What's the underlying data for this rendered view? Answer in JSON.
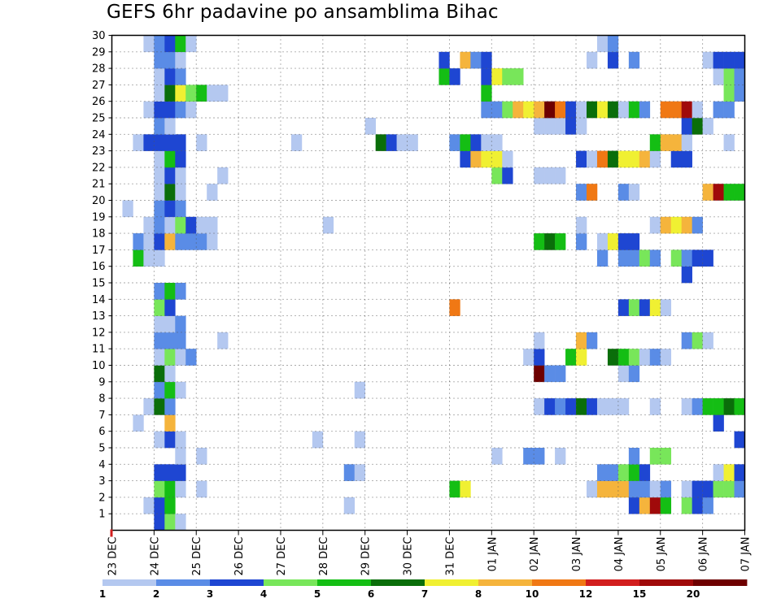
{
  "chart_data": {
    "type": "heatmap",
    "title": "GEFS 6hr padavine po ansamblima Bihac",
    "xlabel": "",
    "ylabel": "",
    "x_tick_labels": [
      "23 DEC",
      "24 DEC",
      "25 DEC",
      "26 DEC",
      "27 DEC",
      "28 DEC",
      "29 DEC",
      "30 DEC",
      "31 DEC",
      "01 JAN",
      "02 JAN",
      "03 JAN",
      "04 JAN",
      "05 JAN",
      "06 JAN",
      "07 JAN"
    ],
    "y_tick_labels": [
      "1",
      "2",
      "3",
      "4",
      "5",
      "6",
      "7",
      "8",
      "9",
      "10",
      "11",
      "12",
      "13",
      "14",
      "15",
      "16",
      "17",
      "18",
      "19",
      "20",
      "21",
      "22",
      "23",
      "24",
      "25",
      "26",
      "27",
      "28",
      "29",
      "30"
    ],
    "n_times": 60,
    "n_members": 30,
    "legend": {
      "labels": [
        "1",
        "2",
        "3",
        "4",
        "5",
        "6",
        "7",
        "8",
        "10",
        "12",
        "15",
        "20"
      ],
      "colors": [
        "#b4c8f0",
        "#5a8ce6",
        "#1e46d2",
        "#78e65a",
        "#14be14",
        "#0a6e0a",
        "#f0f032",
        "#f5b43c",
        "#f07814",
        "#d21e1e",
        "#a00a0a",
        "#6e0000"
      ]
    },
    "color_levels": {
      "1": "#b4c8f0",
      "2": "#5a8ce6",
      "3": "#1e46d2",
      "4": "#78e65a",
      "5": "#14be14",
      "6": "#0a6e0a",
      "7": "#f0f032",
      "8": "#f5b43c",
      "9": "#f07814",
      "10": "#d21e1e",
      "11": "#a00a0a",
      "12": "#6e0000"
    },
    "member_cells": {
      "30": [
        [
          3,
          1
        ],
        [
          4,
          2
        ],
        [
          5,
          3
        ],
        [
          6,
          5
        ],
        [
          7,
          1
        ],
        [
          46,
          1
        ],
        [
          47,
          2
        ]
      ],
      "29": [
        [
          4,
          2
        ],
        [
          5,
          2
        ],
        [
          6,
          1
        ],
        [
          31,
          3
        ],
        [
          33,
          8
        ],
        [
          34,
          2
        ],
        [
          35,
          3
        ],
        [
          45,
          1
        ],
        [
          47,
          3
        ],
        [
          49,
          2
        ],
        [
          56,
          1
        ],
        [
          57,
          3
        ],
        [
          58,
          3
        ],
        [
          59,
          3
        ]
      ],
      "28": [
        [
          4,
          1
        ],
        [
          5,
          3
        ],
        [
          6,
          2
        ],
        [
          31,
          5
        ],
        [
          32,
          3
        ],
        [
          35,
          3
        ],
        [
          36,
          7
        ],
        [
          37,
          4
        ],
        [
          38,
          4
        ],
        [
          57,
          1
        ],
        [
          58,
          4
        ],
        [
          59,
          2
        ]
      ],
      "27": [
        [
          4,
          1
        ],
        [
          5,
          6
        ],
        [
          6,
          7
        ],
        [
          7,
          4
        ],
        [
          8,
          5
        ],
        [
          9,
          1
        ],
        [
          10,
          1
        ],
        [
          35,
          5
        ],
        [
          58,
          4
        ],
        [
          59,
          2
        ]
      ],
      "26": [
        [
          3,
          1
        ],
        [
          4,
          3
        ],
        [
          5,
          3
        ],
        [
          6,
          2
        ],
        [
          7,
          1
        ],
        [
          35,
          2
        ],
        [
          36,
          2
        ],
        [
          37,
          4
        ],
        [
          38,
          8
        ],
        [
          39,
          7
        ],
        [
          40,
          8
        ],
        [
          41,
          12
        ],
        [
          42,
          9
        ],
        [
          43,
          3
        ],
        [
          44,
          1
        ],
        [
          45,
          6
        ],
        [
          46,
          7
        ],
        [
          47,
          6
        ],
        [
          48,
          1
        ],
        [
          49,
          5
        ],
        [
          50,
          2
        ],
        [
          52,
          9
        ],
        [
          53,
          9
        ],
        [
          54,
          11
        ],
        [
          55,
          1
        ],
        [
          57,
          2
        ],
        [
          58,
          2
        ]
      ],
      "25": [
        [
          4,
          2
        ],
        [
          5,
          1
        ],
        [
          24,
          1
        ],
        [
          40,
          1
        ],
        [
          41,
          1
        ],
        [
          42,
          1
        ],
        [
          43,
          3
        ],
        [
          44,
          1
        ],
        [
          54,
          3
        ],
        [
          55,
          6
        ],
        [
          56,
          1
        ]
      ],
      "24": [
        [
          2,
          1
        ],
        [
          3,
          3
        ],
        [
          4,
          3
        ],
        [
          5,
          3
        ],
        [
          6,
          3
        ],
        [
          8,
          1
        ],
        [
          17,
          1
        ],
        [
          25,
          6
        ],
        [
          26,
          3
        ],
        [
          27,
          1
        ],
        [
          28,
          1
        ],
        [
          32,
          2
        ],
        [
          33,
          5
        ],
        [
          34,
          3
        ],
        [
          35,
          1
        ],
        [
          36,
          1
        ],
        [
          51,
          5
        ],
        [
          52,
          8
        ],
        [
          53,
          8
        ],
        [
          54,
          1
        ],
        [
          58,
          1
        ]
      ],
      "23": [
        [
          4,
          1
        ],
        [
          5,
          5
        ],
        [
          6,
          3
        ],
        [
          33,
          3
        ],
        [
          34,
          8
        ],
        [
          35,
          7
        ],
        [
          36,
          7
        ],
        [
          37,
          1
        ],
        [
          44,
          3
        ],
        [
          45,
          1
        ],
        [
          46,
          9
        ],
        [
          47,
          6
        ],
        [
          48,
          7
        ],
        [
          49,
          7
        ],
        [
          50,
          8
        ],
        [
          51,
          1
        ],
        [
          53,
          3
        ],
        [
          54,
          3
        ]
      ],
      "22": [
        [
          4,
          1
        ],
        [
          5,
          3
        ],
        [
          6,
          1
        ],
        [
          10,
          1
        ],
        [
          36,
          4
        ],
        [
          37,
          3
        ],
        [
          40,
          1
        ],
        [
          41,
          1
        ],
        [
          42,
          1
        ]
      ],
      "21": [
        [
          4,
          1
        ],
        [
          5,
          6
        ],
        [
          6,
          1
        ],
        [
          9,
          1
        ],
        [
          44,
          2
        ],
        [
          45,
          9
        ],
        [
          48,
          2
        ],
        [
          49,
          1
        ],
        [
          56,
          8
        ],
        [
          57,
          11
        ],
        [
          58,
          5
        ],
        [
          59,
          5
        ]
      ],
      "20": [
        [
          1,
          1
        ],
        [
          4,
          2
        ],
        [
          5,
          3
        ],
        [
          6,
          2
        ]
      ],
      "19": [
        [
          3,
          1
        ],
        [
          4,
          2
        ],
        [
          5,
          1
        ],
        [
          6,
          4
        ],
        [
          7,
          3
        ],
        [
          8,
          1
        ],
        [
          9,
          1
        ],
        [
          20,
          1
        ],
        [
          44,
          1
        ],
        [
          51,
          1
        ],
        [
          52,
          8
        ],
        [
          53,
          7
        ],
        [
          54,
          8
        ],
        [
          55,
          2
        ]
      ],
      "18": [
        [
          2,
          2
        ],
        [
          3,
          1
        ],
        [
          4,
          3
        ],
        [
          5,
          8
        ],
        [
          6,
          2
        ],
        [
          7,
          2
        ],
        [
          8,
          2
        ],
        [
          9,
          1
        ],
        [
          40,
          5
        ],
        [
          41,
          6
        ],
        [
          42,
          5
        ],
        [
          44,
          2
        ],
        [
          46,
          1
        ],
        [
          47,
          7
        ],
        [
          48,
          3
        ],
        [
          49,
          3
        ]
      ],
      "17": [
        [
          2,
          5
        ],
        [
          3,
          1
        ],
        [
          4,
          1
        ],
        [
          46,
          2
        ],
        [
          48,
          2
        ],
        [
          49,
          2
        ],
        [
          50,
          4
        ],
        [
          51,
          2
        ],
        [
          53,
          4
        ],
        [
          54,
          2
        ],
        [
          55,
          3
        ],
        [
          56,
          3
        ]
      ],
      "16": [
        [
          54,
          3
        ]
      ],
      "15": [
        [
          4,
          2
        ],
        [
          5,
          5
        ],
        [
          6,
          2
        ]
      ],
      "14": [
        [
          4,
          4
        ],
        [
          5,
          3
        ],
        [
          32,
          9
        ],
        [
          48,
          3
        ],
        [
          49,
          4
        ],
        [
          50,
          3
        ],
        [
          51,
          7
        ],
        [
          52,
          1
        ]
      ],
      "13": [
        [
          4,
          1
        ],
        [
          5,
          1
        ],
        [
          6,
          2
        ]
      ],
      "12": [
        [
          4,
          2
        ],
        [
          5,
          2
        ],
        [
          6,
          2
        ],
        [
          10,
          1
        ],
        [
          40,
          1
        ],
        [
          44,
          8
        ],
        [
          45,
          2
        ],
        [
          54,
          2
        ],
        [
          55,
          4
        ],
        [
          56,
          1
        ]
      ],
      "11": [
        [
          4,
          1
        ],
        [
          5,
          4
        ],
        [
          6,
          1
        ],
        [
          7,
          2
        ],
        [
          39,
          1
        ],
        [
          40,
          3
        ],
        [
          43,
          5
        ],
        [
          44,
          7
        ],
        [
          47,
          6
        ],
        [
          48,
          5
        ],
        [
          49,
          4
        ],
        [
          50,
          1
        ],
        [
          51,
          2
        ],
        [
          52,
          1
        ]
      ],
      "10": [
        [
          4,
          6
        ],
        [
          5,
          1
        ],
        [
          40,
          12
        ],
        [
          41,
          2
        ],
        [
          42,
          2
        ],
        [
          48,
          1
        ],
        [
          49,
          2
        ]
      ],
      "9": [
        [
          4,
          2
        ],
        [
          5,
          5
        ],
        [
          6,
          1
        ],
        [
          23,
          1
        ]
      ],
      "8": [
        [
          3,
          1
        ],
        [
          4,
          6
        ],
        [
          5,
          2
        ],
        [
          40,
          1
        ],
        [
          41,
          3
        ],
        [
          42,
          2
        ],
        [
          43,
          3
        ],
        [
          44,
          6
        ],
        [
          45,
          3
        ],
        [
          46,
          1
        ],
        [
          47,
          1
        ],
        [
          48,
          1
        ],
        [
          51,
          1
        ],
        [
          54,
          1
        ],
        [
          55,
          2
        ],
        [
          56,
          5
        ],
        [
          57,
          5
        ],
        [
          58,
          6
        ],
        [
          59,
          5
        ]
      ],
      "7": [
        [
          2,
          1
        ],
        [
          5,
          8
        ],
        [
          57,
          3
        ]
      ],
      "6": [
        [
          4,
          1
        ],
        [
          5,
          3
        ],
        [
          6,
          1
        ],
        [
          19,
          1
        ],
        [
          23,
          1
        ],
        [
          59,
          3
        ]
      ],
      "5": [
        [
          6,
          1
        ],
        [
          8,
          1
        ],
        [
          36,
          1
        ],
        [
          39,
          2
        ],
        [
          40,
          2
        ],
        [
          42,
          1
        ],
        [
          49,
          2
        ],
        [
          51,
          4
        ],
        [
          52,
          4
        ]
      ],
      "4": [
        [
          4,
          3
        ],
        [
          5,
          3
        ],
        [
          6,
          3
        ],
        [
          22,
          2
        ],
        [
          23,
          1
        ],
        [
          46,
          2
        ],
        [
          47,
          2
        ],
        [
          48,
          4
        ],
        [
          49,
          5
        ],
        [
          50,
          3
        ],
        [
          57,
          1
        ],
        [
          58,
          7
        ],
        [
          59,
          3
        ]
      ],
      "3": [
        [
          4,
          4
        ],
        [
          5,
          5
        ],
        [
          6,
          1
        ],
        [
          8,
          1
        ],
        [
          32,
          5
        ],
        [
          33,
          7
        ],
        [
          45,
          1
        ],
        [
          46,
          8
        ],
        [
          47,
          8
        ],
        [
          48,
          8
        ],
        [
          49,
          2
        ],
        [
          50,
          2
        ],
        [
          51,
          1
        ],
        [
          52,
          2
        ],
        [
          54,
          1
        ],
        [
          55,
          3
        ],
        [
          56,
          3
        ],
        [
          57,
          4
        ],
        [
          58,
          4
        ],
        [
          59,
          2
        ]
      ],
      "2": [
        [
          3,
          1
        ],
        [
          4,
          3
        ],
        [
          5,
          5
        ],
        [
          22,
          1
        ],
        [
          49,
          3
        ],
        [
          50,
          8
        ],
        [
          51,
          11
        ],
        [
          52,
          5
        ],
        [
          54,
          4
        ],
        [
          55,
          3
        ],
        [
          56,
          2
        ]
      ],
      "1": [
        [
          4,
          3
        ],
        [
          5,
          4
        ],
        [
          6,
          1
        ]
      ]
    }
  }
}
